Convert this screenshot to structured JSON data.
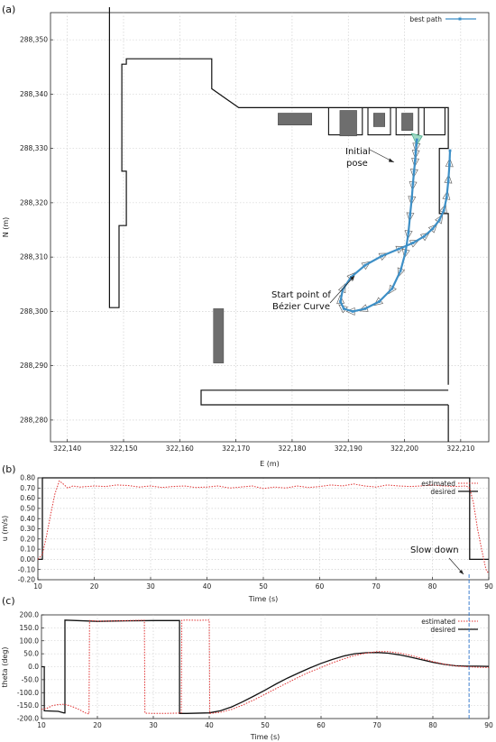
{
  "panels": {
    "a": {
      "label": "(a)",
      "xlabel": "E (m)",
      "ylabel": "N (m)",
      "legend": "best path",
      "annotation_pose": [
        "Initial",
        "pose"
      ],
      "annotation_start": [
        "Start point of",
        "Bézier Curve"
      ]
    },
    "b": {
      "label": "(b)",
      "xlabel": "Time (s)",
      "ylabel": "u (m/s)",
      "legend_estimated": "estimated",
      "legend_desired": "desired",
      "annotation_slow": "Slow down"
    },
    "c": {
      "label": "(c)",
      "xlabel": "Time (s)",
      "ylabel": "theta (deg)",
      "legend_estimated": "estimated",
      "legend_desired": "desired"
    }
  },
  "colors": {
    "best_path": "#3d8fc6",
    "estimated": "#e03030",
    "desired": "#111111",
    "obstacle": "#6e6e6e",
    "pose_marker": "#9fd9c4",
    "slow_line": "#2a72c8"
  },
  "chart_data": [
    {
      "type": "line",
      "title": "",
      "xlabel": "E (m)",
      "ylabel": "N (m)",
      "xlim": [
        322137,
        322215
      ],
      "ylim": [
        288276,
        288355
      ],
      "xticks": [
        "322,140",
        "322,150",
        "322,160",
        "322,170",
        "322,180",
        "322,190",
        "322,200",
        "322,210"
      ],
      "yticks": [
        "288,280",
        "288,290",
        "288,300",
        "288,310",
        "288,320",
        "288,330",
        "288,340",
        "288,350"
      ],
      "xtick_values": [
        322140,
        322150,
        322160,
        322170,
        322180,
        322190,
        322200,
        322210
      ],
      "ytick_values": [
        288280,
        288290,
        288300,
        288310,
        288320,
        288330,
        288340,
        288350
      ],
      "grid": true,
      "legend_position": "top-right",
      "series": [
        {
          "name": "best path",
          "x": [
            322208.1,
            322208.0,
            322207.8,
            322207.5,
            322207.0,
            322206.2,
            322205.0,
            322203.5,
            322201.5,
            322199.0,
            322196.0,
            322193.0,
            322190.5,
            322189.0,
            322188.6,
            322189.2,
            322190.8,
            322193.0,
            322195.5,
            322197.8,
            322199.3,
            322200.2,
            322200.7,
            322201.0,
            322201.3,
            322201.5,
            322201.7,
            322201.9,
            322202.0,
            322202.1,
            322202.2
          ],
          "y": [
            288329.6,
            288327.0,
            288324.0,
            288321.0,
            288318.6,
            288316.8,
            288315.2,
            288313.8,
            288312.6,
            288311.5,
            288310.2,
            288308.5,
            288306.3,
            288304.0,
            288301.8,
            288300.5,
            288300.0,
            288300.5,
            288301.8,
            288304.2,
            288307.5,
            288311.0,
            288314.5,
            288317.8,
            288320.8,
            288323.5,
            288325.8,
            288327.8,
            288329.3,
            288330.6,
            288331.6
          ]
        }
      ],
      "walls": [
        {
          "x": [
            322147.5,
            322147.5,
            322149.2,
            322149.2,
            322150.5,
            322150.5,
            322149.7,
            322149.7,
            322150.5,
            322150.5,
            322165.7,
            322165.7,
            322170.5,
            322207.8,
            322207.8,
            322206.2,
            322206.2,
            322207.8,
            322207.8
          ]
        },
        {
          "y": [
            288356.0,
            288300.7,
            288300.7,
            288315.8,
            288315.8,
            288325.8,
            288325.8,
            288345.5,
            288345.5,
            288346.5,
            288346.5,
            288341.0,
            288337.5,
            288337.5,
            288330.0,
            288330.0,
            288318.0,
            288318.0,
            288286.5
          ]
        }
      ],
      "obstacles": [
        {
          "e": [
            322177.5,
            322183.5
          ],
          "n": [
            288334.3,
            288336.5
          ]
        },
        {
          "e": [
            322188.5,
            322191.5
          ],
          "n": [
            288332.3,
            288337.0
          ]
        },
        {
          "e": [
            322194.5,
            322196.5
          ],
          "n": [
            288334.0,
            288336.5
          ]
        },
        {
          "e": [
            322199.5,
            322201.5
          ],
          "n": [
            288333.3,
            288336.5
          ]
        },
        {
          "e": [
            322166.0,
            322167.8
          ],
          "n": [
            288290.5,
            288300.5
          ]
        }
      ]
    },
    {
      "type": "line",
      "title": "",
      "xlabel": "Time (s)",
      "ylabel": "u (m/s)",
      "xlim": [
        10,
        90
      ],
      "ylim": [
        -0.2,
        0.8
      ],
      "xticks": [
        "10",
        "20",
        "30",
        "40",
        "50",
        "60",
        "70",
        "80",
        "90"
      ],
      "yticks": [
        "-0.20",
        "-0.10",
        "0.00",
        "0.10",
        "0.20",
        "0.30",
        "0.40",
        "0.50",
        "0.60",
        "0.70",
        "0.80"
      ],
      "xtick_values": [
        10,
        20,
        30,
        40,
        50,
        60,
        70,
        80,
        90
      ],
      "ytick_values": [
        -0.2,
        -0.1,
        0.0,
        0.1,
        0.2,
        0.3,
        0.4,
        0.5,
        0.6,
        0.7,
        0.8
      ],
      "grid": true,
      "legend_position": "top-right",
      "series": [
        {
          "name": "estimated",
          "x": [
            10,
            10.8,
            11.5,
            12.3,
            13.0,
            13.8,
            14.5,
            15.3,
            16.2,
            17.5,
            20,
            22,
            24,
            26,
            28,
            30,
            32,
            34,
            36,
            38,
            40,
            42,
            44,
            46,
            48,
            50,
            52,
            54,
            56,
            58,
            60,
            62,
            64,
            66,
            68,
            70,
            72,
            74,
            76,
            78,
            80,
            82,
            84,
            86,
            86.6,
            87.3,
            88.0,
            88.8,
            89.5,
            90
          ],
          "y": [
            0.0,
            0.05,
            0.22,
            0.45,
            0.64,
            0.77,
            0.74,
            0.7,
            0.72,
            0.71,
            0.72,
            0.715,
            0.73,
            0.725,
            0.71,
            0.72,
            0.705,
            0.715,
            0.72,
            0.705,
            0.71,
            0.72,
            0.7,
            0.71,
            0.72,
            0.695,
            0.71,
            0.7,
            0.72,
            0.705,
            0.715,
            0.73,
            0.72,
            0.74,
            0.72,
            0.71,
            0.73,
            0.72,
            0.715,
            0.72,
            0.73,
            0.72,
            0.715,
            0.72,
            0.7,
            0.55,
            0.3,
            0.08,
            -0.1,
            -0.14
          ]
        },
        {
          "name": "desired",
          "x": [
            10,
            10.8,
            10.8,
            86.6,
            86.6,
            90
          ],
          "y": [
            0.0,
            0.0,
            0.8,
            0.8,
            0.0,
            0.0
          ]
        }
      ],
      "annotations": [
        {
          "text": "Slow down",
          "x": 86.5
        }
      ]
    },
    {
      "type": "line",
      "title": "",
      "xlabel": "Time (s)",
      "ylabel": "theta (deg)",
      "xlim": [
        10,
        90
      ],
      "ylim": [
        -200,
        200
      ],
      "xticks": [
        "10",
        "20",
        "30",
        "40",
        "50",
        "60",
        "70",
        "80",
        "90"
      ],
      "yticks": [
        "-200.0",
        "-150.0",
        "-100.0",
        "-50.0",
        "0.0",
        "50.0",
        "100.0",
        "150.0",
        "200.0"
      ],
      "xtick_values": [
        10,
        20,
        30,
        40,
        50,
        60,
        70,
        80,
        90
      ],
      "ytick_values": [
        -200,
        -150,
        -100,
        -50,
        0,
        50,
        100,
        150,
        200
      ],
      "grid": true,
      "legend_position": "top-right",
      "series": [
        {
          "name": "estimated",
          "x": [
            10,
            11,
            12,
            13,
            14,
            15,
            16,
            17,
            18,
            18.5,
            18.6,
            20,
            22,
            24,
            26,
            28,
            28.4,
            28.5,
            30,
            32,
            34,
            35,
            35.1,
            36,
            38,
            40,
            40.1,
            42,
            44,
            46,
            48,
            50,
            52,
            54,
            56,
            58,
            60,
            62,
            64,
            66,
            68,
            70,
            72,
            74,
            76,
            78,
            80,
            82,
            84,
            86,
            88,
            90
          ],
          "y": [
            -165,
            -160,
            -150,
            -146,
            -145,
            -150,
            -158,
            -168,
            -180,
            -182,
            178,
            176,
            176,
            177,
            178,
            179,
            179,
            -179,
            -180,
            -180,
            -179,
            -178,
            179,
            180,
            179,
            180,
            -180,
            -176,
            -165,
            -148,
            -128,
            -106,
            -84,
            -62,
            -40,
            -20,
            -3,
            15,
            30,
            43,
            52,
            58,
            58,
            53,
            44,
            32,
            20,
            10,
            3,
            0,
            -2,
            -3
          ]
        },
        {
          "name": "desired",
          "x": [
            10,
            10.5,
            10.5,
            13,
            14,
            14.2,
            14.2,
            20,
            25,
            30,
            34.7,
            34.7,
            36,
            40,
            42,
            44,
            46,
            48,
            50,
            52,
            54,
            56,
            58,
            60,
            62,
            64,
            66,
            68,
            70,
            72,
            74,
            76,
            78,
            80,
            82,
            84,
            86,
            88,
            90
          ],
          "y": [
            0,
            0,
            -170,
            -172,
            -178,
            -178,
            180,
            175,
            177,
            178,
            178,
            -180,
            -180,
            -178,
            -170,
            -155,
            -135,
            -113,
            -90,
            -66,
            -44,
            -24,
            -5,
            13,
            28,
            41,
            50,
            54,
            55,
            52,
            46,
            37,
            27,
            17,
            9,
            4,
            2,
            2,
            1
          ]
        }
      ]
    }
  ]
}
